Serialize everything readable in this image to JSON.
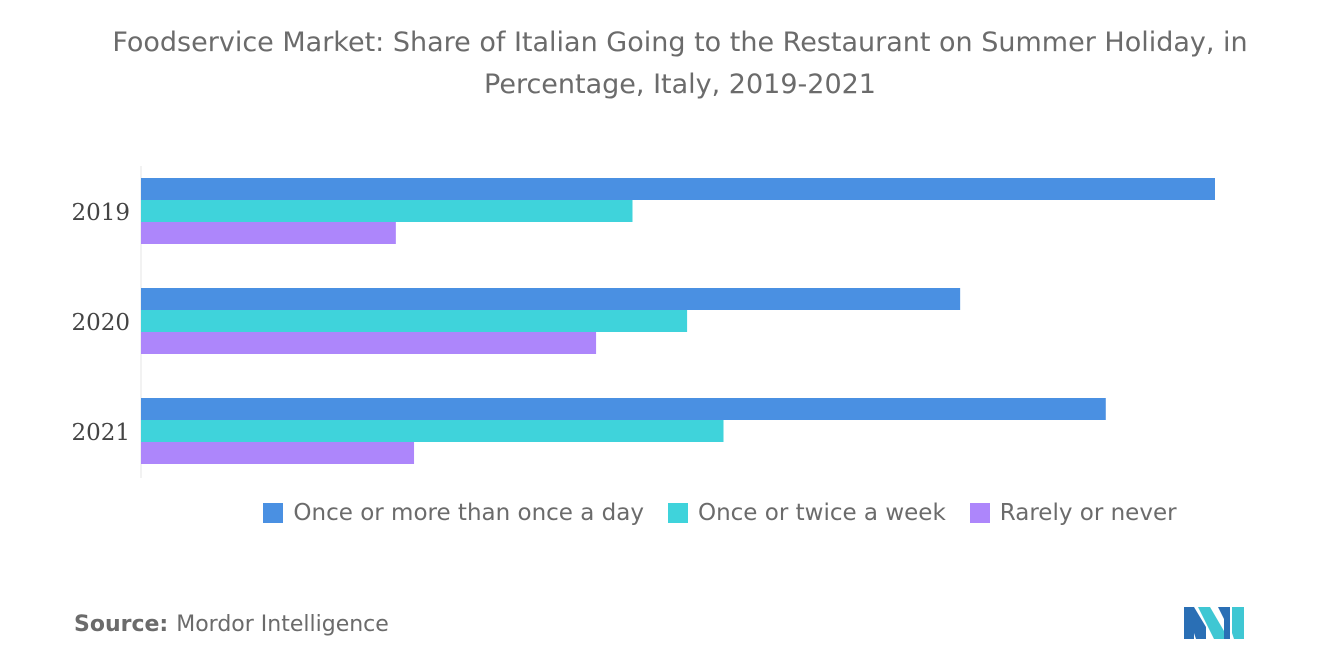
{
  "title": "Foodservice Market: Share of Italian Going to the Restaurant on Summer Holiday, in Percentage, Italy, 2019-2021",
  "source": {
    "label": "Source:",
    "text": "Mordor Intelligence"
  },
  "colors": {
    "series1": "#4a90e2",
    "series2": "#3fd3db",
    "series3": "#ad86fb"
  },
  "chart_data": {
    "type": "bar",
    "orientation": "horizontal",
    "categories": [
      "2019",
      "2020",
      "2021"
    ],
    "series": [
      {
        "name": "Once or more than once a day",
        "values": [
          59,
          45,
          53
        ],
        "color": "#4a90e2"
      },
      {
        "name": "Once or twice a week",
        "values": [
          27,
          30,
          32
        ],
        "color": "#3fd3db"
      },
      {
        "name": "Rarely or never",
        "values": [
          14,
          25,
          15
        ],
        "color": "#ad86fb"
      }
    ],
    "xlim": [
      0,
      60
    ],
    "grid": false,
    "legend_position": "bottom",
    "title": "Foodservice Market: Share of Italian Going to the Restaurant on Summer Holiday, in Percentage, Italy, 2019-2021"
  }
}
